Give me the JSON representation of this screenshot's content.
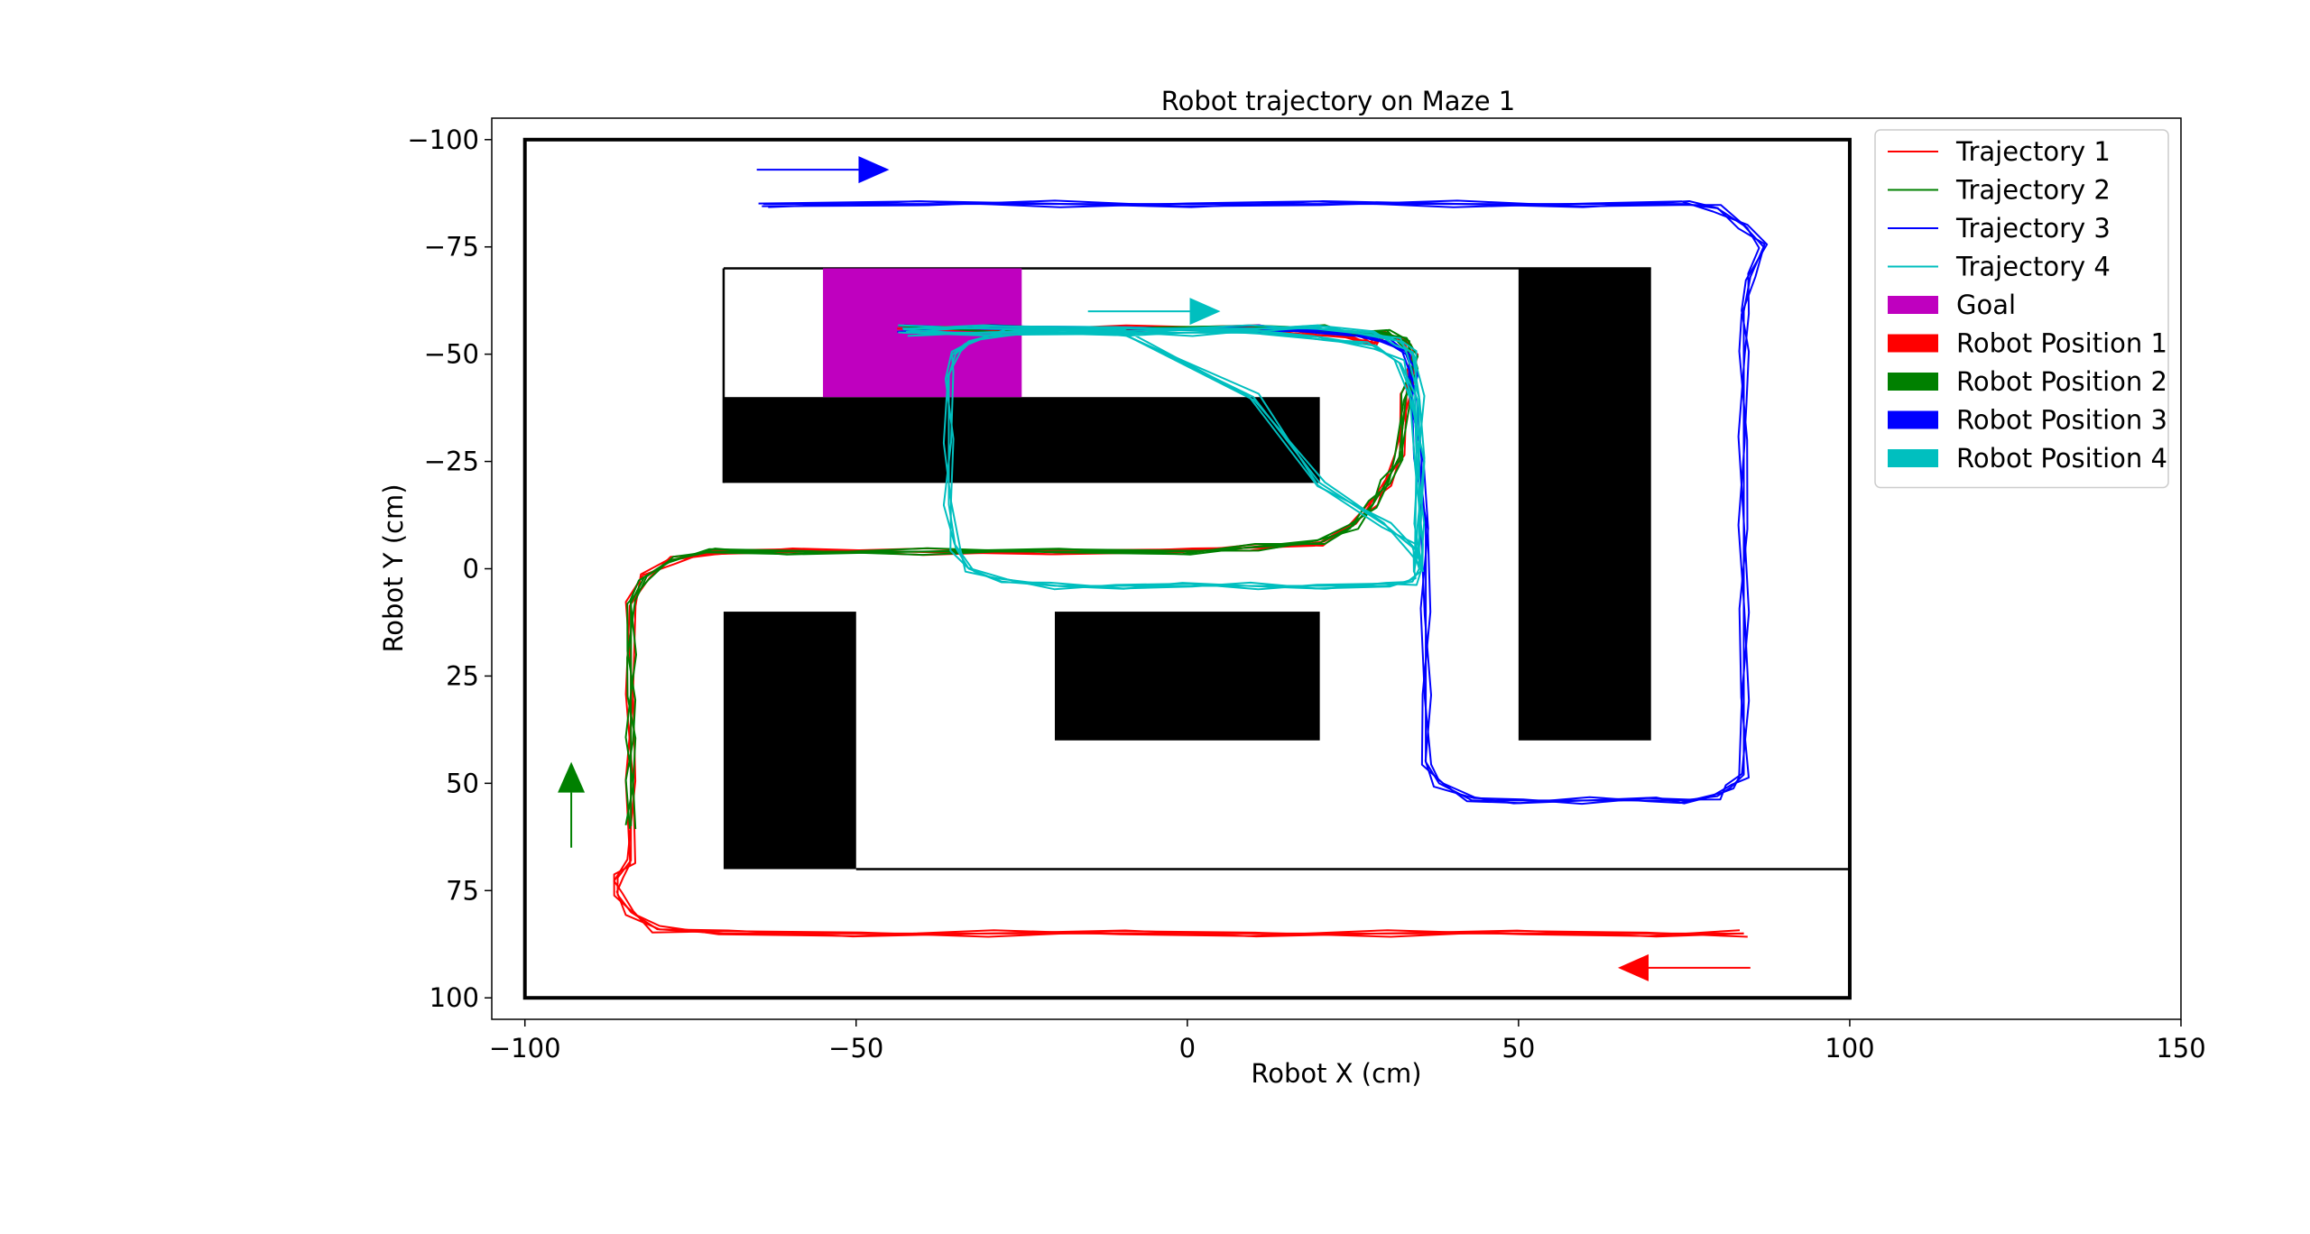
{
  "chart_data": {
    "type": "line",
    "title": "Robot trajectory on Maze 1",
    "xlabel": "Robot X (cm)",
    "ylabel": "Robot Y (cm)",
    "xlim": [
      -105,
      150
    ],
    "ylim": [
      105,
      -105
    ],
    "y_inverted": true,
    "x_ticks": [
      -100,
      -50,
      0,
      50,
      100,
      150
    ],
    "x_tick_labels": [
      "−100",
      "−50",
      "0",
      "50",
      "100",
      "150"
    ],
    "y_ticks": [
      -100,
      -75,
      -50,
      -25,
      0,
      25,
      50,
      75,
      100
    ],
    "y_tick_labels": [
      "−100",
      "−75",
      "−50",
      "−25",
      "0",
      "25",
      "50",
      "75",
      "100"
    ],
    "grid": false,
    "legend_position": "upper-right-outside",
    "legend": [
      {
        "label": "Trajectory 1",
        "kind": "line",
        "color": "#ff0000"
      },
      {
        "label": "Trajectory 2",
        "kind": "line",
        "color": "#008000"
      },
      {
        "label": "Trajectory 3",
        "kind": "line",
        "color": "#0000ff"
      },
      {
        "label": "Trajectory 4",
        "kind": "line",
        "color": "#00bfbf"
      },
      {
        "label": "Goal",
        "kind": "patch",
        "color": "#bf00bf"
      },
      {
        "label": "Robot Position 1",
        "kind": "patch",
        "color": "#ff0000"
      },
      {
        "label": "Robot Position 2",
        "kind": "patch",
        "color": "#008000"
      },
      {
        "label": "Robot Position 3",
        "kind": "patch",
        "color": "#0000ff"
      },
      {
        "label": "Robot Position 4",
        "kind": "patch",
        "color": "#00bfbf"
      }
    ],
    "maze": {
      "outer_wall": {
        "x": [
          -100,
          100
        ],
        "y": [
          -100,
          100
        ]
      },
      "walls": [
        {
          "points": [
            [
              -70,
              -70
            ],
            [
              70,
              -70
            ]
          ]
        },
        {
          "points": [
            [
              -70,
              -70
            ],
            [
              -70,
              -20
            ]
          ]
        },
        {
          "points": [
            [
              -50,
              70
            ],
            [
              100,
              70
            ]
          ]
        }
      ],
      "blocks": [
        {
          "x0": -70,
          "x1": 20,
          "y0": -40,
          "y1": -20
        },
        {
          "x0": 50,
          "x1": 70,
          "y0": -70,
          "y1": 40
        },
        {
          "x0": -70,
          "x1": -50,
          "y0": 10,
          "y1": 70
        },
        {
          "x0": -20,
          "x1": 20,
          "y0": 10,
          "y1": 40
        }
      ],
      "goal": {
        "x0": -55,
        "x1": -25,
        "y0": -70,
        "y1": -40,
        "color": "#bf00bf"
      }
    },
    "start_arrows": [
      {
        "series": "Robot Position 1",
        "color": "#ff0000",
        "from": [
          85,
          93
        ],
        "to": [
          65,
          93
        ]
      },
      {
        "series": "Robot Position 2",
        "color": "#008000",
        "from": [
          -93,
          65
        ],
        "to": [
          -93,
          45
        ]
      },
      {
        "series": "Robot Position 3",
        "color": "#0000ff",
        "from": [
          -65,
          -93
        ],
        "to": [
          -45,
          -93
        ]
      },
      {
        "series": "Robot Position 4",
        "color": "#00bfbf",
        "from": [
          -15,
          -60
        ],
        "to": [
          5,
          -60
        ]
      }
    ],
    "series": [
      {
        "name": "Trajectory 1",
        "color": "#ff0000",
        "runs": 4,
        "x": [
          84,
          70,
          50,
          30,
          10,
          -10,
          -30,
          -50,
          -70,
          -80,
          -84,
          -86,
          -86,
          -84,
          -84,
          -84,
          -84,
          -82,
          -78,
          -72,
          -60,
          -40,
          -20,
          0,
          10,
          20,
          25,
          28,
          30,
          32,
          33,
          34,
          34,
          33,
          30,
          28,
          25,
          20,
          10,
          -10,
          -30,
          -43
        ],
        "y": [
          85,
          85,
          85,
          85,
          85,
          85,
          85,
          85,
          85,
          84,
          80,
          76,
          72,
          68,
          50,
          30,
          8,
          2,
          -2,
          -4,
          -4,
          -4,
          -4,
          -4,
          -5,
          -6,
          -10,
          -15,
          -20,
          -26,
          -40,
          -46,
          -50,
          -53,
          -55,
          -52,
          -54,
          -55,
          -56,
          -56,
          -56,
          -56
        ]
      },
      {
        "name": "Trajectory 2",
        "color": "#008000",
        "runs": 4,
        "x": [
          -84,
          -84,
          -84,
          -84,
          -84,
          -84,
          -82,
          -78,
          -72,
          -60,
          -40,
          -20,
          0,
          10,
          20,
          25,
          28,
          30,
          32,
          33,
          34,
          34,
          33,
          30,
          25,
          20,
          10,
          -10,
          -30,
          -43
        ],
        "y": [
          60,
          50,
          40,
          30,
          20,
          8,
          2,
          -2,
          -4,
          -4,
          -4,
          -4,
          -4,
          -5,
          -6,
          -10,
          -15,
          -20,
          -26,
          -40,
          -46,
          -50,
          -53,
          -55,
          -55,
          -56,
          -56,
          -56,
          -56,
          -56
        ]
      },
      {
        "name": "Trajectory 3",
        "color": "#0000ff",
        "runs": 4,
        "x": [
          -64,
          -40,
          -20,
          0,
          20,
          40,
          60,
          75,
          80,
          84,
          87,
          85,
          84,
          84,
          84,
          84,
          84,
          84,
          84,
          82,
          80,
          75,
          70,
          60,
          50,
          43,
          38,
          36,
          36,
          36,
          36,
          35,
          34,
          34,
          33,
          30,
          25,
          20,
          10,
          -10,
          -30,
          -43
        ],
        "y": [
          -85,
          -85,
          -85,
          -85,
          -85,
          -85,
          -85,
          -85,
          -84,
          -80,
          -75,
          -68,
          -60,
          -50,
          -30,
          -10,
          10,
          30,
          48,
          51,
          53,
          54,
          54,
          54,
          54,
          54,
          50,
          45,
          30,
          10,
          -10,
          -25,
          -40,
          -46,
          -50,
          -53,
          -55,
          -55,
          -56,
          -56,
          -56,
          -56
        ]
      },
      {
        "name": "Trajectory 4",
        "color": "#00bfbf",
        "runs": 4,
        "x": [
          -43,
          -30,
          -10,
          10,
          20,
          28,
          32,
          34,
          35,
          35,
          35,
          35,
          34,
          30,
          20,
          10,
          0,
          -10,
          -20,
          -28,
          -33,
          -35,
          -36,
          -36,
          -36,
          -35,
          -33,
          -28,
          -20,
          -10,
          0,
          10,
          20,
          28,
          32,
          34,
          35,
          35,
          35,
          34,
          30,
          20,
          10,
          -10,
          -30,
          -43
        ],
        "y": [
          -56,
          -56,
          -56,
          -56,
          -56,
          -55,
          -53,
          -50,
          -40,
          -25,
          -10,
          0,
          3,
          4,
          4,
          4,
          4,
          4,
          4,
          3,
          0,
          -5,
          -15,
          -30,
          -45,
          -50,
          -53,
          -55,
          -55,
          -55,
          -55,
          -55,
          -54,
          -52,
          -48,
          -40,
          -25,
          -5,
          0,
          -5,
          -10,
          -20,
          -40,
          -55,
          -55,
          -55
        ]
      }
    ]
  }
}
